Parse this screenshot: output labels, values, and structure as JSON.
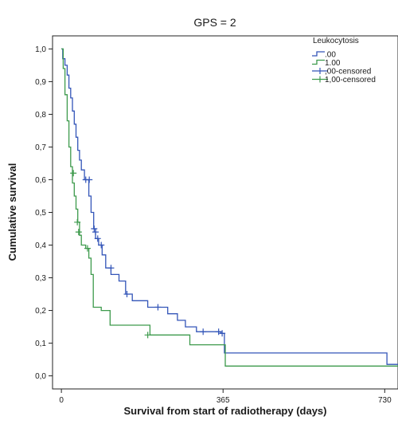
{
  "chart_data": {
    "type": "line",
    "title": "GPS = 2",
    "xlabel": "Survival from start of radiotherapy (days)",
    "ylabel": "Cumulative survival",
    "xlim": [
      -20,
      760
    ],
    "ylim": [
      -0.04,
      1.04
    ],
    "xticks": [
      0,
      365,
      730
    ],
    "xtick_labels": [
      "0",
      "365",
      "730"
    ],
    "yticks": [
      0.0,
      0.1,
      0.2,
      0.3,
      0.4,
      0.5,
      0.6,
      0.7,
      0.8,
      0.9,
      1.0
    ],
    "ytick_labels": [
      "0,0",
      "0,1",
      "0,2",
      "0,3",
      "0,4",
      "0,5",
      "0,6",
      "0,7",
      "0,8",
      "0,9",
      "1,0"
    ],
    "grid": false,
    "legend": {
      "title": "Leukocytosis",
      "placement": "top-right",
      "entries": [
        ".00",
        "1.00",
        ",00-censored",
        "1,00-censored"
      ]
    },
    "series": [
      {
        "name": ".00",
        "color": "#3355b8",
        "steps": [
          [
            0,
            1.0
          ],
          [
            3,
            0.97
          ],
          [
            8,
            0.95
          ],
          [
            13,
            0.92
          ],
          [
            17,
            0.88
          ],
          [
            21,
            0.85
          ],
          [
            25,
            0.81
          ],
          [
            29,
            0.77
          ],
          [
            33,
            0.73
          ],
          [
            37,
            0.69
          ],
          [
            41,
            0.66
          ],
          [
            45,
            0.63
          ],
          [
            52,
            0.6
          ],
          [
            62,
            0.55
          ],
          [
            67,
            0.5
          ],
          [
            73,
            0.45
          ],
          [
            77,
            0.42
          ],
          [
            84,
            0.4
          ],
          [
            92,
            0.37
          ],
          [
            100,
            0.33
          ],
          [
            112,
            0.31
          ],
          [
            130,
            0.29
          ],
          [
            145,
            0.25
          ],
          [
            160,
            0.23
          ],
          [
            195,
            0.21
          ],
          [
            240,
            0.19
          ],
          [
            262,
            0.17
          ],
          [
            280,
            0.15
          ],
          [
            305,
            0.135
          ],
          [
            360,
            0.13
          ],
          [
            368,
            0.07
          ],
          [
            735,
            0.035
          ],
          [
            760,
            0.035
          ]
        ]
      },
      {
        "name": "1.00",
        "color": "#3d9a4c",
        "steps": [
          [
            0,
            1.0
          ],
          [
            4,
            0.94
          ],
          [
            8,
            0.86
          ],
          [
            13,
            0.78
          ],
          [
            17,
            0.7
          ],
          [
            21,
            0.64
          ],
          [
            25,
            0.59
          ],
          [
            29,
            0.55
          ],
          [
            33,
            0.51
          ],
          [
            37,
            0.47
          ],
          [
            41,
            0.43
          ],
          [
            45,
            0.4
          ],
          [
            55,
            0.39
          ],
          [
            62,
            0.36
          ],
          [
            67,
            0.31
          ],
          [
            72,
            0.21
          ],
          [
            90,
            0.2
          ],
          [
            110,
            0.155
          ],
          [
            200,
            0.125
          ],
          [
            290,
            0.095
          ],
          [
            370,
            0.03
          ],
          [
            760,
            0.03
          ]
        ]
      }
    ],
    "censored": [
      {
        "name": ",00-censored",
        "color": "#3355b8",
        "points": [
          [
            55,
            0.6
          ],
          [
            63,
            0.6
          ],
          [
            74,
            0.45
          ],
          [
            77,
            0.44
          ],
          [
            82,
            0.42
          ],
          [
            90,
            0.4
          ],
          [
            112,
            0.33
          ],
          [
            148,
            0.25
          ],
          [
            218,
            0.21
          ],
          [
            320,
            0.135
          ],
          [
            355,
            0.135
          ],
          [
            363,
            0.13
          ]
        ]
      },
      {
        "name": "1,00-censored",
        "color": "#3d9a4c",
        "points": [
          [
            27,
            0.62
          ],
          [
            36,
            0.47
          ],
          [
            39,
            0.44
          ],
          [
            59,
            0.39
          ],
          [
            195,
            0.125
          ]
        ]
      }
    ]
  }
}
